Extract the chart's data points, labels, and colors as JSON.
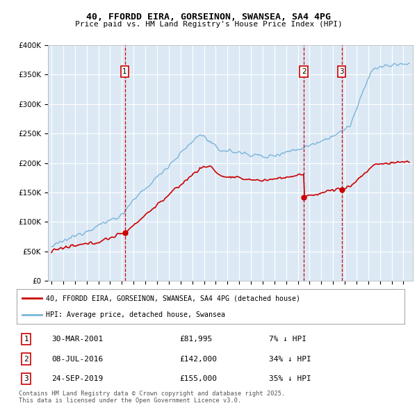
{
  "title1": "40, FFORDD EIRA, GORSEINON, SWANSEA, SA4 4PG",
  "title2": "Price paid vs. HM Land Registry's House Price Index (HPI)",
  "ylabel_ticks": [
    "£0",
    "£50K",
    "£100K",
    "£150K",
    "£200K",
    "£250K",
    "£300K",
    "£350K",
    "£400K"
  ],
  "ylim": [
    0,
    400000
  ],
  "xlim_start": 1994.7,
  "xlim_end": 2025.8,
  "background_color": "#dce9f5",
  "grid_color": "#ffffff",
  "transaction_dates": [
    2001.247,
    2016.519,
    2019.731
  ],
  "transaction_prices": [
    81995,
    142000,
    155000
  ],
  "transaction_labels": [
    "1",
    "2",
    "3"
  ],
  "vline_color": "#cc0000",
  "marker_color": "#cc0000",
  "legend_line1": "40, FFORDD EIRA, GORSEINON, SWANSEA, SA4 4PG (detached house)",
  "legend_line2": "HPI: Average price, detached house, Swansea",
  "legend_color1": "#cc0000",
  "legend_color2": "#7ab4d8",
  "table_rows": [
    [
      "1",
      "30-MAR-2001",
      "£81,995",
      "7% ↓ HPI"
    ],
    [
      "2",
      "08-JUL-2016",
      "£142,000",
      "34% ↓ HPI"
    ],
    [
      "3",
      "24-SEP-2019",
      "£155,000",
      "35% ↓ HPI"
    ]
  ],
  "footnote": "Contains HM Land Registry data © Crown copyright and database right 2025.\nThis data is licensed under the Open Government Licence v3.0.",
  "hpi_line_color": "#7ab4d8",
  "price_line_color": "#cc0000"
}
